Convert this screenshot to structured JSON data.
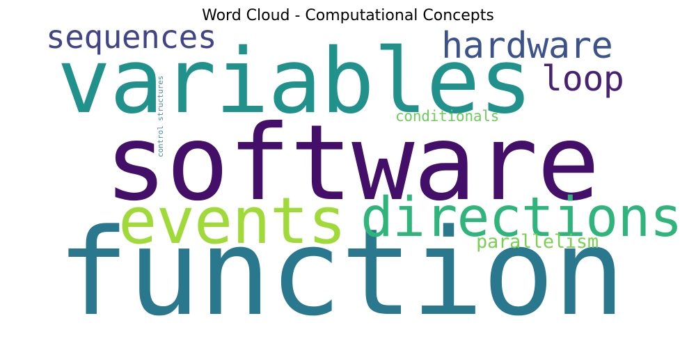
{
  "chart_data": {
    "type": "wordcloud",
    "title": "Word Cloud - Computational Concepts",
    "words": [
      {
        "text": "function",
        "color": "#2a788e",
        "rank": 1
      },
      {
        "text": "software",
        "color": "#440f69",
        "rank": 2
      },
      {
        "text": "variables",
        "color": "#21918c",
        "rank": 3
      },
      {
        "text": "events",
        "color": "#a0da39",
        "rank": 4
      },
      {
        "text": "directions",
        "color": "#2fb47c",
        "rank": 5
      },
      {
        "text": "hardware",
        "color": "#3b528b",
        "rank": 6
      },
      {
        "text": "loop",
        "color": "#482173",
        "rank": 7
      },
      {
        "text": "sequences",
        "color": "#414487",
        "rank": 8
      },
      {
        "text": "parallelism",
        "color": "#7ad151",
        "rank": 9
      },
      {
        "text": "conditionals",
        "color": "#6ccd5a",
        "rank": 10
      },
      {
        "text": "control structures",
        "color": "#4d8b9b",
        "rank": 11
      }
    ]
  }
}
